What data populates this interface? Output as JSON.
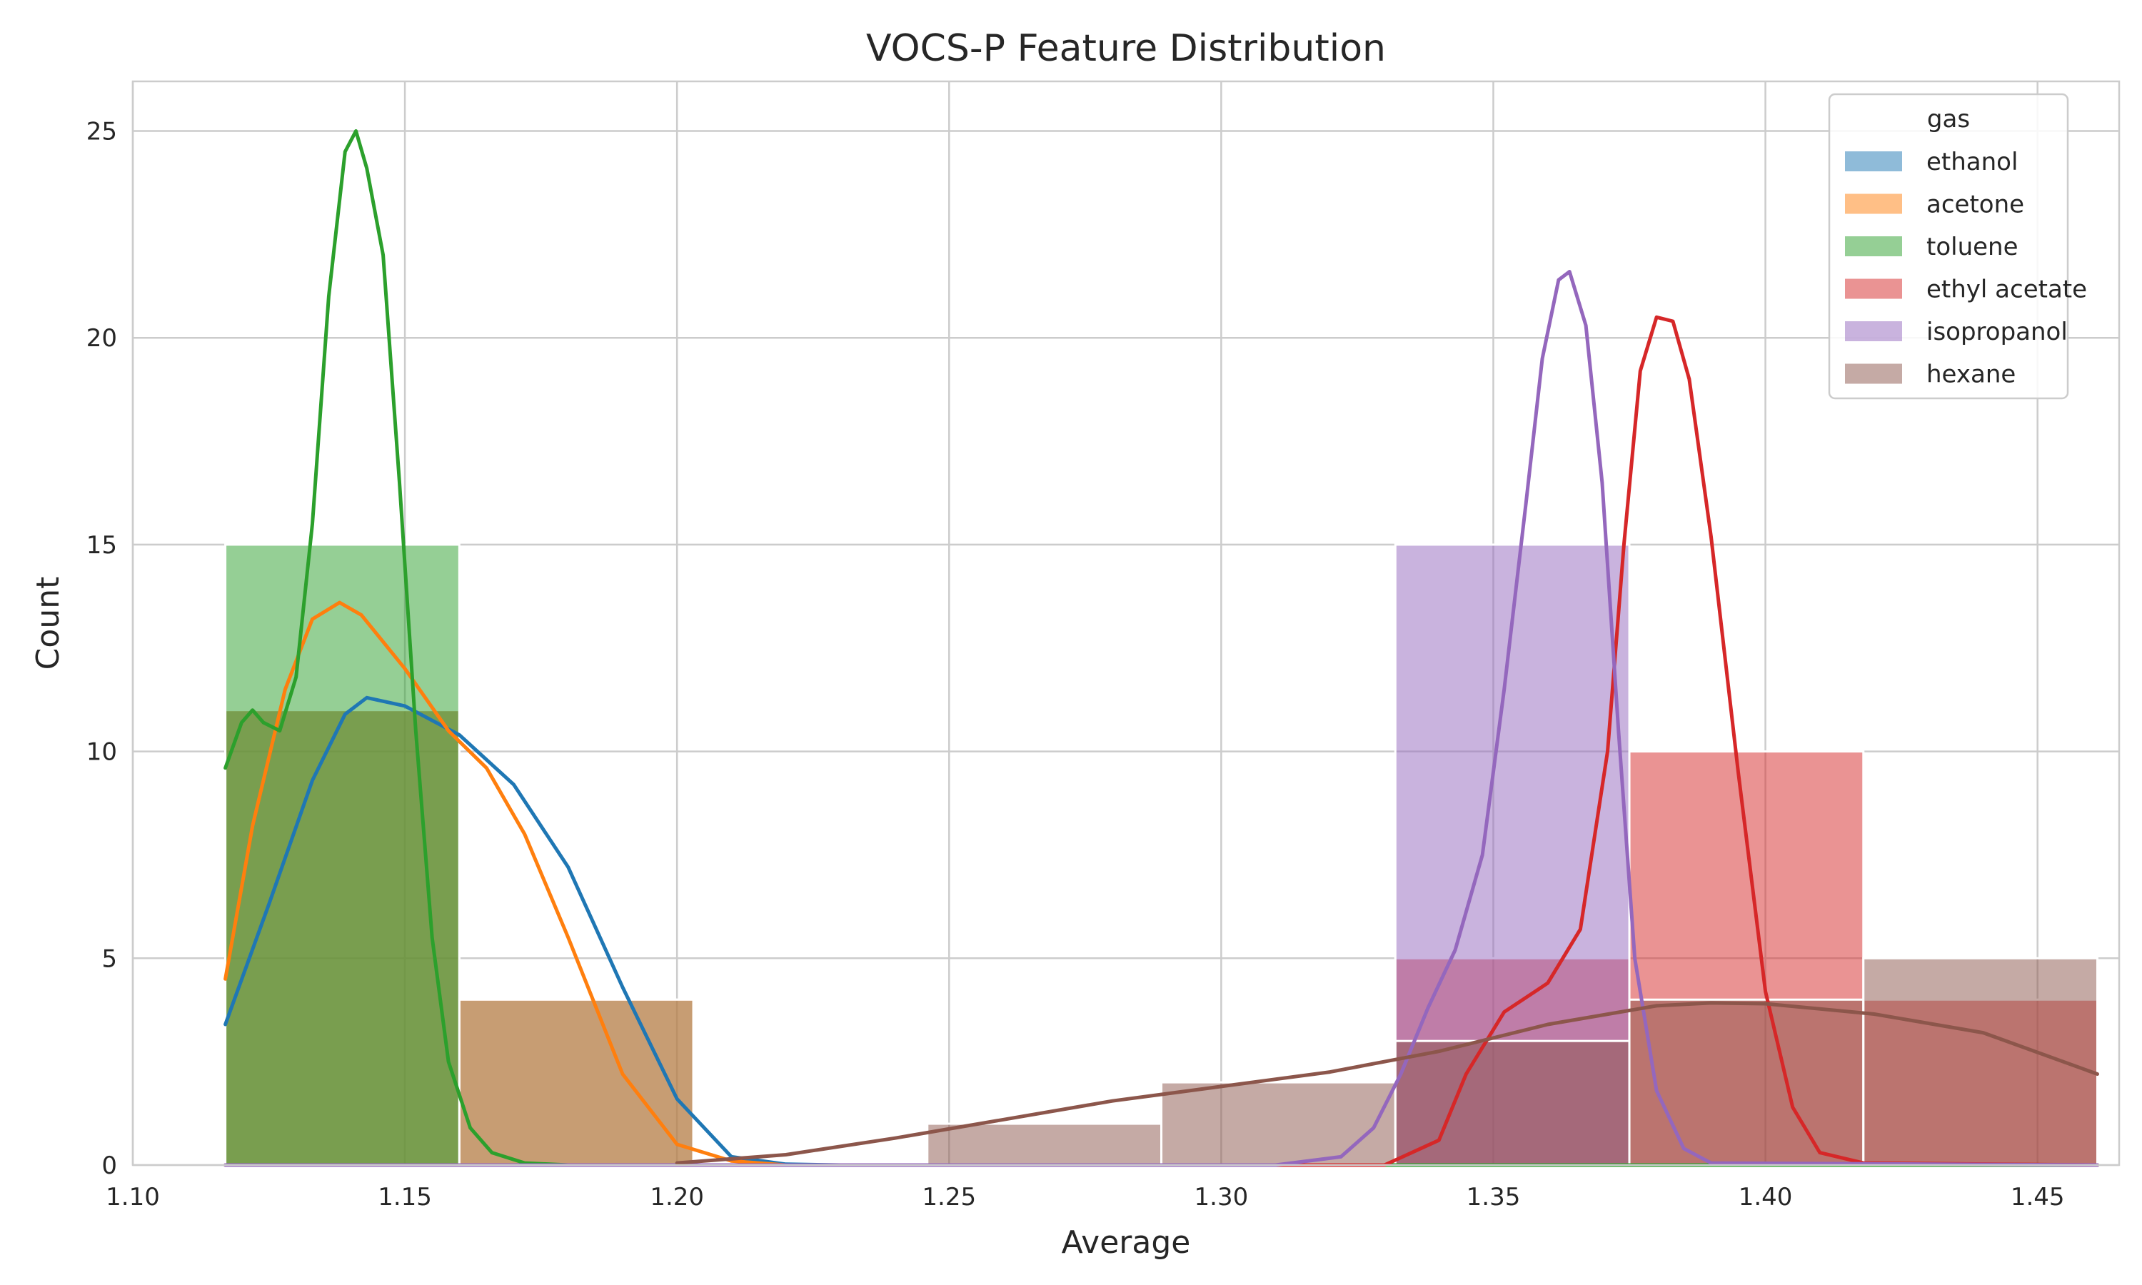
{
  "chart_data": {
    "type": "histogram",
    "title": "VOCS-P Feature Distribution",
    "xlabel": "Average",
    "ylabel": "Count",
    "xlim": [
      1.1,
      1.465
    ],
    "ylim": [
      0,
      26.2
    ],
    "xticks": [
      "1.10",
      "1.15",
      "1.20",
      "1.25",
      "1.30",
      "1.35",
      "1.40",
      "1.45"
    ],
    "xtick_values": [
      1.1,
      1.15,
      1.2,
      1.25,
      1.3,
      1.35,
      1.4,
      1.45
    ],
    "yticks": [
      "0",
      "5",
      "10",
      "15",
      "20",
      "25"
    ],
    "ytick_values": [
      0,
      5,
      10,
      15,
      20,
      25
    ],
    "grid": true,
    "legend": {
      "title": "gas",
      "position": "top-right"
    },
    "bin_edges": [
      1.117,
      1.16,
      1.203,
      1.246,
      1.289,
      1.332,
      1.375,
      1.418,
      1.461
    ],
    "colors": {
      "ethanol": "#1f77b4",
      "acetone": "#ff7f0e",
      "toluene": "#2ca02c",
      "ethyl acetate": "#d62728",
      "isopropanol": "#9467bd",
      "hexane": "#8c564b"
    },
    "series": [
      {
        "name": "ethanol",
        "counts": [
          11,
          4,
          0,
          0,
          0,
          0,
          0,
          0
        ],
        "kde": [
          [
            1.117,
            3.4
          ],
          [
            1.125,
            6.3
          ],
          [
            1.133,
            9.3
          ],
          [
            1.139,
            10.9
          ],
          [
            1.143,
            11.3
          ],
          [
            1.15,
            11.1
          ],
          [
            1.16,
            10.4
          ],
          [
            1.17,
            9.2
          ],
          [
            1.18,
            7.2
          ],
          [
            1.19,
            4.3
          ],
          [
            1.2,
            1.6
          ],
          [
            1.21,
            0.2
          ],
          [
            1.22,
            0.02
          ],
          [
            1.23,
            0
          ],
          [
            1.461,
            0
          ]
        ]
      },
      {
        "name": "acetone",
        "counts": [
          11,
          4,
          0,
          0,
          0,
          0,
          0,
          0
        ],
        "kde": [
          [
            1.117,
            4.5
          ],
          [
            1.122,
            8.2
          ],
          [
            1.128,
            11.5
          ],
          [
            1.133,
            13.2
          ],
          [
            1.138,
            13.6
          ],
          [
            1.142,
            13.3
          ],
          [
            1.15,
            12.0
          ],
          [
            1.158,
            10.5
          ],
          [
            1.165,
            9.6
          ],
          [
            1.172,
            8.0
          ],
          [
            1.18,
            5.5
          ],
          [
            1.19,
            2.2
          ],
          [
            1.2,
            0.5
          ],
          [
            1.21,
            0.1
          ],
          [
            1.22,
            0
          ],
          [
            1.461,
            0
          ]
        ]
      },
      {
        "name": "toluene",
        "counts": [
          15,
          0,
          0,
          0,
          0,
          0,
          0,
          0
        ],
        "kde": [
          [
            1.117,
            9.6
          ],
          [
            1.12,
            10.7
          ],
          [
            1.122,
            11.0
          ],
          [
            1.124,
            10.7
          ],
          [
            1.127,
            10.5
          ],
          [
            1.13,
            11.8
          ],
          [
            1.133,
            15.5
          ],
          [
            1.136,
            21.0
          ],
          [
            1.139,
            24.5
          ],
          [
            1.141,
            25.0
          ],
          [
            1.143,
            24.1
          ],
          [
            1.146,
            22.0
          ],
          [
            1.149,
            16.5
          ],
          [
            1.152,
            10.5
          ],
          [
            1.155,
            5.5
          ],
          [
            1.158,
            2.5
          ],
          [
            1.162,
            0.9
          ],
          [
            1.166,
            0.3
          ],
          [
            1.172,
            0.05
          ],
          [
            1.18,
            0
          ],
          [
            1.461,
            0
          ]
        ]
      },
      {
        "name": "ethyl acetate",
        "counts": [
          0,
          0,
          0,
          0,
          0,
          5,
          10,
          4
        ],
        "kde": [
          [
            1.117,
            0
          ],
          [
            1.33,
            0
          ],
          [
            1.34,
            0.6
          ],
          [
            1.345,
            2.2
          ],
          [
            1.352,
            3.7
          ],
          [
            1.36,
            4.4
          ],
          [
            1.366,
            5.7
          ],
          [
            1.371,
            10.0
          ],
          [
            1.374,
            15.0
          ],
          [
            1.377,
            19.2
          ],
          [
            1.38,
            20.5
          ],
          [
            1.383,
            20.4
          ],
          [
            1.386,
            19.0
          ],
          [
            1.39,
            15.2
          ],
          [
            1.395,
            9.5
          ],
          [
            1.4,
            4.2
          ],
          [
            1.405,
            1.4
          ],
          [
            1.41,
            0.3
          ],
          [
            1.418,
            0.05
          ],
          [
            1.461,
            0
          ]
        ]
      },
      {
        "name": "isopropanol",
        "counts": [
          0,
          0,
          0,
          0,
          0,
          15,
          0,
          0
        ],
        "kde": [
          [
            1.117,
            0
          ],
          [
            1.31,
            0
          ],
          [
            1.322,
            0.2
          ],
          [
            1.328,
            0.9
          ],
          [
            1.333,
            2.2
          ],
          [
            1.338,
            3.8
          ],
          [
            1.343,
            5.2
          ],
          [
            1.348,
            7.5
          ],
          [
            1.352,
            11.5
          ],
          [
            1.356,
            16.0
          ],
          [
            1.359,
            19.5
          ],
          [
            1.362,
            21.4
          ],
          [
            1.364,
            21.6
          ],
          [
            1.367,
            20.3
          ],
          [
            1.37,
            16.5
          ],
          [
            1.373,
            10.5
          ],
          [
            1.376,
            5.0
          ],
          [
            1.38,
            1.8
          ],
          [
            1.385,
            0.4
          ],
          [
            1.39,
            0.05
          ],
          [
            1.461,
            0
          ]
        ]
      },
      {
        "name": "hexane",
        "counts": [
          0,
          0,
          0,
          1,
          2,
          3,
          4,
          5
        ],
        "kde": [
          [
            1.2,
            0.05
          ],
          [
            1.22,
            0.25
          ],
          [
            1.24,
            0.65
          ],
          [
            1.26,
            1.1
          ],
          [
            1.28,
            1.55
          ],
          [
            1.3,
            1.9
          ],
          [
            1.32,
            2.25
          ],
          [
            1.34,
            2.75
          ],
          [
            1.36,
            3.4
          ],
          [
            1.38,
            3.85
          ],
          [
            1.39,
            3.92
          ],
          [
            1.4,
            3.9
          ],
          [
            1.42,
            3.65
          ],
          [
            1.44,
            3.2
          ],
          [
            1.461,
            2.2
          ]
        ]
      }
    ]
  }
}
